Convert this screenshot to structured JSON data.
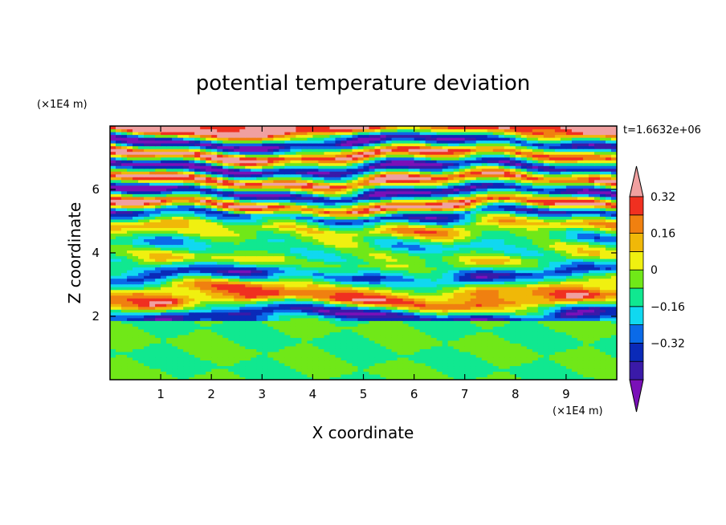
{
  "chart_data": {
    "type": "heatmap",
    "title": "potential temperature deviation",
    "xlabel": "X coordinate",
    "ylabel": "Z coordinate",
    "x_unit": "(×1E4 m)",
    "y_unit": "(×1E4 m)",
    "time_label": "t=1.6632e+06",
    "xlim": [
      0,
      10
    ],
    "ylim": [
      0,
      8
    ],
    "x_ticks": [
      "1",
      "2",
      "3",
      "4",
      "5",
      "6",
      "7",
      "8",
      "9"
    ],
    "y_ticks": [
      "2",
      "4",
      "6"
    ],
    "colorbar": {
      "levels": [
        -0.48,
        -0.4,
        -0.32,
        -0.24,
        -0.16,
        -0.08,
        0,
        0.08,
        0.16,
        0.24,
        0.32,
        0.4,
        0.48
      ],
      "labels": [
        "0.32",
        "0.16",
        "0",
        "−0.16",
        "−0.32"
      ],
      "colors": [
        "#7a10b8",
        "#3a1aa8",
        "#0a2ab8",
        "#0a6ae8",
        "#10d8f0",
        "#10e890",
        "#70e818",
        "#f0f010",
        "#f0b808",
        "#f08010",
        "#f03020",
        "#f0a0a0"
      ]
    },
    "layers": [
      {
        "z": 0.5,
        "value": 0.0
      },
      {
        "z": 1.5,
        "value": 0.05
      },
      {
        "z": 2.05,
        "value": -0.35
      },
      {
        "z": 2.5,
        "value": 0.3
      },
      {
        "z": 2.9,
        "value": 0.2
      },
      {
        "z": 3.3,
        "value": -0.3
      },
      {
        "z": 3.7,
        "value": 0.1
      },
      {
        "z": 4.3,
        "value": -0.1
      },
      {
        "z": 4.8,
        "value": 0.2
      },
      {
        "z": 5.2,
        "value": -0.3
      },
      {
        "z": 5.5,
        "value": 0.45
      },
      {
        "z": 5.9,
        "value": -0.45
      },
      {
        "z": 6.3,
        "value": 0.45
      },
      {
        "z": 6.7,
        "value": -0.45
      },
      {
        "z": 7.1,
        "value": 0.45
      },
      {
        "z": 7.5,
        "value": -0.45
      },
      {
        "z": 7.9,
        "value": 0.45
      }
    ]
  }
}
